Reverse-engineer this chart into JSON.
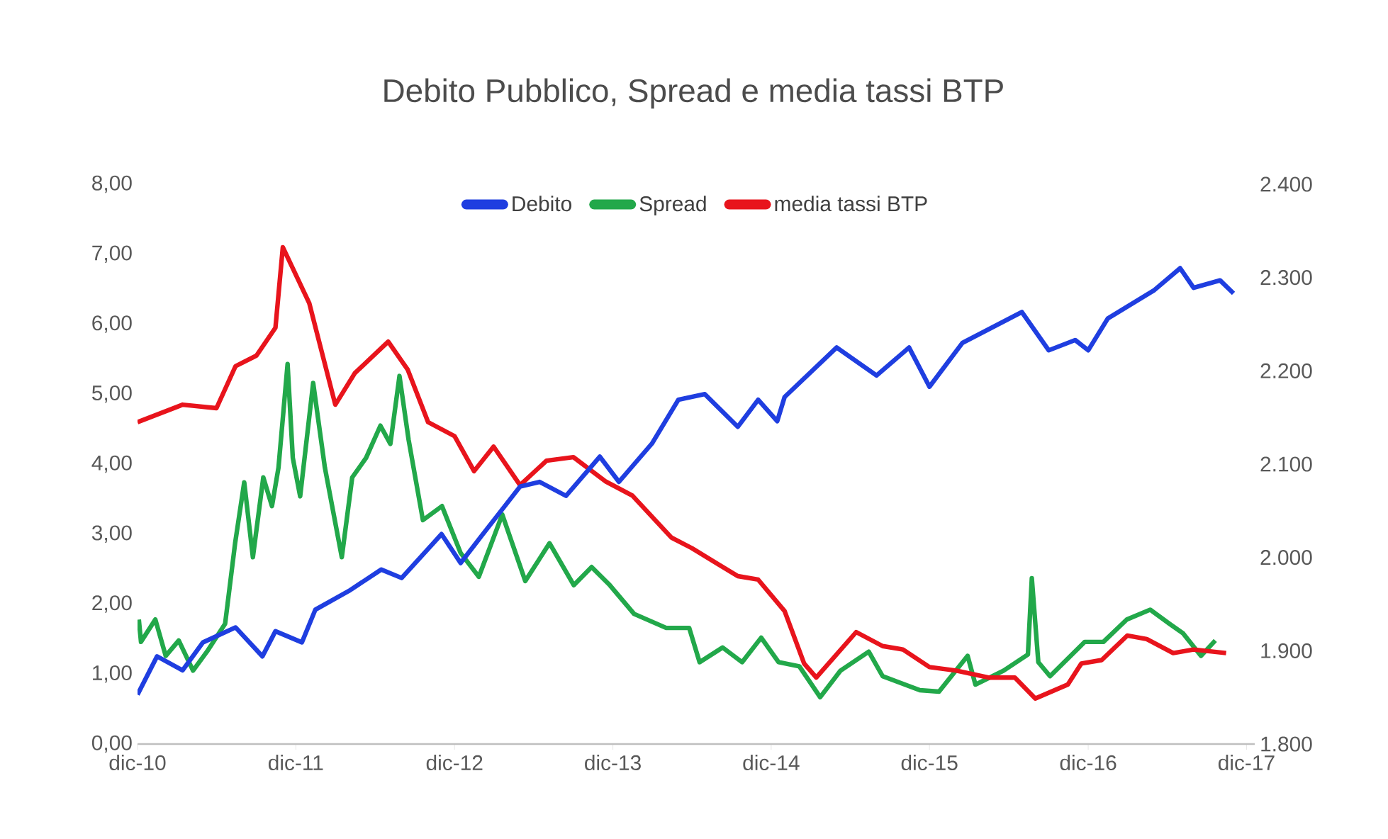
{
  "chart_data": {
    "type": "line",
    "title": "Debito Pubblico,  Spread e media tassi BTP",
    "xlim": [
      "2010-12-01",
      "2017-12-20"
    ],
    "xticks": [
      {
        "value": "2010-12-01",
        "label": "dic-10"
      },
      {
        "value": "2011-12-01",
        "label": "dic-11"
      },
      {
        "value": "2012-12-01",
        "label": "dic-12"
      },
      {
        "value": "2013-12-01",
        "label": "dic-13"
      },
      {
        "value": "2014-12-01",
        "label": "dic-14"
      },
      {
        "value": "2015-12-01",
        "label": "dic-15"
      },
      {
        "value": "2016-12-01",
        "label": "dic-16"
      },
      {
        "value": "2017-12-01",
        "label": "dic-17"
      }
    ],
    "ylim": [
      0,
      8
    ],
    "yticks": [
      {
        "value": 0,
        "label": "0,00"
      },
      {
        "value": 1,
        "label": "1,00"
      },
      {
        "value": 2,
        "label": "2,00"
      },
      {
        "value": 3,
        "label": "3,00"
      },
      {
        "value": 4,
        "label": "4,00"
      },
      {
        "value": 5,
        "label": "5,00"
      },
      {
        "value": 6,
        "label": "6,00"
      },
      {
        "value": 7,
        "label": "7,00"
      },
      {
        "value": 8,
        "label": "8,00"
      }
    ],
    "y2lim": [
      1800,
      2400
    ],
    "y2ticks": [
      {
        "value": 1800,
        "label": "1.800"
      },
      {
        "value": 1900,
        "label": "1.900"
      },
      {
        "value": 2000,
        "label": "2.000"
      },
      {
        "value": 2100,
        "label": "2.100"
      },
      {
        "value": 2200,
        "label": "2.200"
      },
      {
        "value": 2300,
        "label": "2.300"
      },
      {
        "value": 2400,
        "label": "2.400"
      }
    ],
    "grid": false,
    "legend": "top",
    "marker": "none",
    "line_style": "solid",
    "series": [
      {
        "name": "Debito",
        "color": "#1f3ee0",
        "axis": "y2",
        "x": [
          "2010-12-01",
          "2011-01-15",
          "2011-03-15",
          "2011-05-01",
          "2011-07-15",
          "2011-09-15",
          "2011-10-15",
          "2011-12-15",
          "2012-01-15",
          "2012-04-01",
          "2012-06-15",
          "2012-08-01",
          "2012-11-01",
          "2012-12-15",
          "2013-02-01",
          "2013-05-01",
          "2013-06-15",
          "2013-08-15",
          "2013-11-01",
          "2013-12-15",
          "2014-03-01",
          "2014-05-01",
          "2014-07-01",
          "2014-09-15",
          "2014-11-01",
          "2014-12-15",
          "2015-01-01",
          "2015-05-01",
          "2015-08-01",
          "2015-10-15",
          "2015-12-01",
          "2016-02-15",
          "2016-07-01",
          "2016-09-01",
          "2016-11-01",
          "2016-12-01",
          "2017-01-15",
          "2017-05-01",
          "2017-07-01",
          "2017-08-01",
          "2017-10-01",
          "2017-11-01"
        ],
        "values": [
          1853,
          1894,
          1879,
          1909,
          1925,
          1894,
          1921,
          1909,
          1944,
          1964,
          1987,
          1978,
          2025,
          1994,
          2023,
          2076,
          2081,
          2066,
          2108,
          2081,
          2122,
          2169,
          2175,
          2140,
          2169,
          2146,
          2172,
          2225,
          2195,
          2225,
          2183,
          2230,
          2263,
          2222,
          2233,
          2222,
          2256,
          2286,
          2310,
          2289,
          2297,
          2283
        ]
      },
      {
        "name": "Spread",
        "color": "#22a84a",
        "x": [
          "2010-12-04",
          "2010-12-09",
          "2011-01-11",
          "2011-02-04",
          "2011-03-06",
          "2011-04-08",
          "2011-05-10",
          "2011-06-21",
          "2011-07-14",
          "2011-08-04",
          "2011-08-24",
          "2011-09-17",
          "2011-10-07",
          "2011-10-22",
          "2011-11-12",
          "2011-11-24",
          "2011-12-11",
          "2012-01-10",
          "2012-02-06",
          "2012-03-16",
          "2012-04-09",
          "2012-05-11",
          "2012-06-13",
          "2012-07-06",
          "2012-07-27",
          "2012-08-17",
          "2012-09-19",
          "2012-11-02",
          "2012-12-15",
          "2013-01-26",
          "2013-03-21",
          "2013-05-13",
          "2013-07-08",
          "2013-09-02",
          "2013-10-13",
          "2013-11-24",
          "2014-01-19",
          "2014-04-03",
          "2014-05-26",
          "2014-06-19",
          "2014-08-11",
          "2014-09-25",
          "2014-11-08",
          "2014-12-18",
          "2015-02-04",
          "2015-03-24",
          "2015-05-10",
          "2015-07-14",
          "2015-08-15",
          "2015-11-09",
          "2015-12-23",
          "2016-02-27",
          "2016-03-16",
          "2016-05-20",
          "2016-07-15",
          "2016-07-24",
          "2016-08-08",
          "2016-09-04",
          "2016-11-23",
          "2017-01-05",
          "2017-02-28",
          "2017-04-23",
          "2017-06-06",
          "2017-07-08",
          "2017-08-18",
          "2017-09-20"
        ],
        "values": [
          1.78,
          1.46,
          1.78,
          1.26,
          1.48,
          1.05,
          1.32,
          1.72,
          2.87,
          3.74,
          2.67,
          3.81,
          3.4,
          3.95,
          5.43,
          4.09,
          3.54,
          5.16,
          3.95,
          2.67,
          3.81,
          4.09,
          4.55,
          4.29,
          5.26,
          4.35,
          3.2,
          3.4,
          2.73,
          2.39,
          3.28,
          2.33,
          2.87,
          2.27,
          2.53,
          2.27,
          1.86,
          1.66,
          1.66,
          1.17,
          1.38,
          1.17,
          1.52,
          1.17,
          1.11,
          0.67,
          1.05,
          1.32,
          0.97,
          0.77,
          0.75,
          1.26,
          0.85,
          1.05,
          1.28,
          2.37,
          1.17,
          0.97,
          1.46,
          1.46,
          1.78,
          1.92,
          1.72,
          1.58,
          1.26,
          1.48
        ]
      },
      {
        "name": "media tassi BTP",
        "color": "#e8141c",
        "x": [
          "2010-12-01",
          "2011-03-15",
          "2011-06-01",
          "2011-07-15",
          "2011-09-01",
          "2011-10-15",
          "2011-11-01",
          "2012-01-01",
          "2012-03-01",
          "2012-04-15",
          "2012-07-01",
          "2012-08-15",
          "2012-10-01",
          "2012-12-01",
          "2013-01-15",
          "2013-03-01",
          "2013-05-01",
          "2013-07-01",
          "2013-09-01",
          "2013-11-15",
          "2014-01-15",
          "2014-04-15",
          "2014-06-01",
          "2014-09-15",
          "2014-11-01",
          "2015-01-01",
          "2015-02-15",
          "2015-03-15",
          "2015-06-15",
          "2015-08-15",
          "2015-10-01",
          "2015-12-01",
          "2016-02-01",
          "2016-04-15",
          "2016-06-15",
          "2016-08-01",
          "2016-10-15",
          "2016-11-15",
          "2017-01-01",
          "2017-03-01",
          "2017-04-15",
          "2017-06-15",
          "2017-08-01",
          "2017-10-15"
        ],
        "values": [
          4.6,
          4.85,
          4.8,
          5.4,
          5.55,
          5.95,
          7.1,
          6.3,
          4.85,
          5.3,
          5.75,
          5.35,
          4.6,
          4.4,
          3.9,
          4.25,
          3.7,
          4.05,
          4.1,
          3.75,
          3.55,
          2.95,
          2.8,
          2.4,
          2.35,
          1.9,
          1.15,
          0.95,
          1.6,
          1.4,
          1.35,
          1.1,
          1.05,
          0.95,
          0.95,
          0.65,
          0.85,
          1.15,
          1.2,
          1.55,
          1.5,
          1.3,
          1.35,
          1.3
        ]
      }
    ]
  }
}
